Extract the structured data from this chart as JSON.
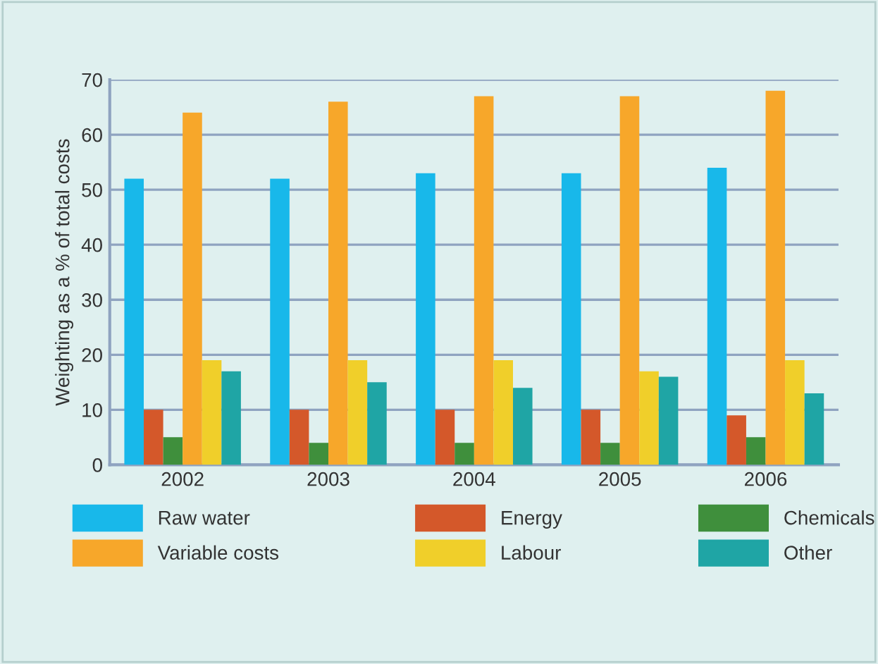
{
  "chart_data": {
    "type": "bar",
    "ylabel": "Weighting as a % of total costs",
    "categories": [
      "2002",
      "2003",
      "2004",
      "2005",
      "2006"
    ],
    "series": [
      {
        "name": "Raw water",
        "color": "#18b8ea",
        "values": [
          52,
          52,
          53,
          53,
          54
        ]
      },
      {
        "name": "Energy",
        "color": "#d4582a",
        "values": [
          10,
          10,
          10,
          10,
          9
        ]
      },
      {
        "name": "Chemicals",
        "color": "#3f8f3c",
        "values": [
          5,
          4,
          4,
          4,
          5
        ]
      },
      {
        "name": "Variable costs",
        "color": "#f7a72a",
        "values": [
          64,
          66,
          67,
          67,
          68
        ]
      },
      {
        "name": "Labour",
        "color": "#f0cf2a",
        "values": [
          19,
          19,
          19,
          17,
          19
        ]
      },
      {
        "name": "Other",
        "color": "#1fa5a5",
        "values": [
          17,
          15,
          14,
          16,
          13
        ]
      }
    ],
    "ylim": [
      0,
      70
    ],
    "yticks": [
      0,
      10,
      20,
      30,
      40,
      50,
      60,
      70
    ],
    "grid": "y",
    "legend": "bottom"
  }
}
